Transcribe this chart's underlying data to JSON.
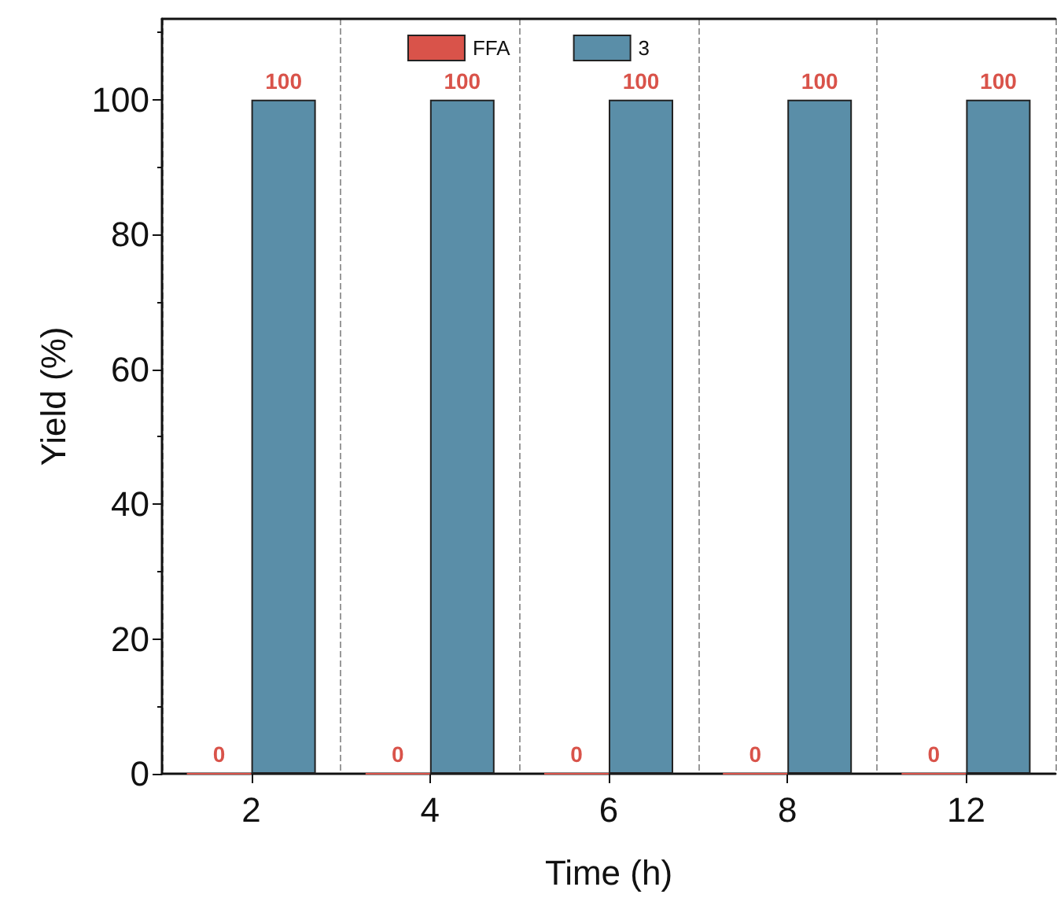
{
  "chart_data": {
    "type": "bar",
    "xlabel": "Time (h)",
    "ylabel": "Yield (%)",
    "categories": [
      "2",
      "4",
      "6",
      "8",
      "12"
    ],
    "series": [
      {
        "name": "FFA",
        "color": "#d9534a",
        "values": [
          0,
          0,
          0,
          0,
          0
        ]
      },
      {
        "name": "3",
        "color": "#5a8ea8",
        "values": [
          100,
          100,
          100,
          100,
          100
        ]
      }
    ],
    "ylim": [
      0,
      112
    ],
    "yticks": [
      0,
      20,
      40,
      60,
      80,
      100
    ],
    "grid": "x",
    "legend": "top",
    "data_labels": true
  }
}
